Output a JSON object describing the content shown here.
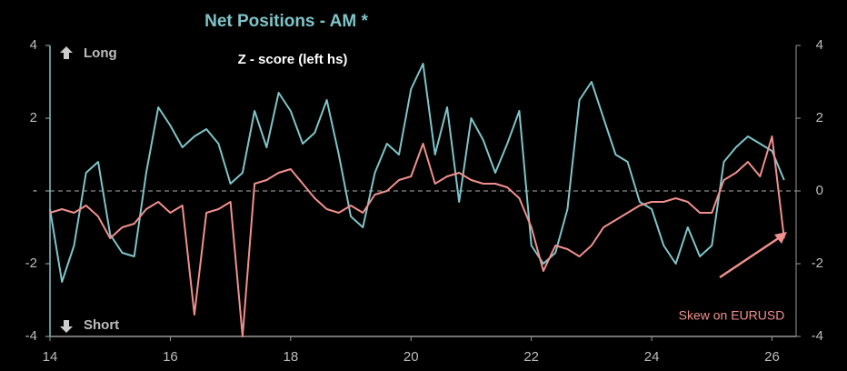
{
  "chart_data": {
    "type": "line",
    "title": "Net Positions - AM *",
    "subtitle": "Z - score (left hs)",
    "annotations": {
      "long": "Long",
      "short": "Short",
      "skew": "Skew on EURUSD"
    },
    "x": [
      14,
      14.2,
      14.4,
      14.6,
      14.8,
      15,
      15.2,
      15.4,
      15.6,
      15.8,
      16,
      16.2,
      16.4,
      16.6,
      16.8,
      17,
      17.2,
      17.4,
      17.6,
      17.8,
      18,
      18.2,
      18.4,
      18.6,
      18.8,
      19,
      19.2,
      19.4,
      19.6,
      19.8,
      20,
      20.2,
      20.4,
      20.6,
      20.8,
      21,
      21.2,
      21.4,
      21.6,
      21.8,
      22,
      22.2,
      22.4,
      22.6,
      22.8,
      23,
      23.2,
      23.4,
      23.6,
      23.8,
      24,
      24.2,
      24.4,
      24.6,
      24.8,
      25,
      25.2,
      25.4,
      25.6,
      25.8,
      26,
      26.2
    ],
    "series": [
      {
        "color": "#7fc4c8",
        "values": [
          -0.5,
          -2.5,
          -1.5,
          0.5,
          0.8,
          -1.2,
          -1.7,
          -1.8,
          0.5,
          2.3,
          1.8,
          1.2,
          1.5,
          1.7,
          1.3,
          0.2,
          0.5,
          2.2,
          1.2,
          2.7,
          2.2,
          1.3,
          1.6,
          2.5,
          1.0,
          -0.7,
          -1.0,
          0.5,
          1.3,
          1.0,
          2.8,
          3.5,
          1.0,
          2.3,
          -0.3,
          2.0,
          1.4,
          0.5,
          1.3,
          2.2,
          -1.5,
          -2.0,
          -1.7,
          -0.5,
          2.5,
          3.0,
          2.0,
          1.0,
          0.8,
          -0.3,
          -0.5,
          -1.5,
          -2.0,
          -1.0,
          -1.8,
          -1.5,
          0.8,
          1.2,
          1.5,
          1.3,
          1.1,
          0.3
        ]
      },
      {
        "color": "#f0908e",
        "axis": "y2",
        "values": [
          -0.6,
          -0.5,
          -0.6,
          -0.4,
          -0.7,
          -1.3,
          -1.0,
          -0.9,
          -0.5,
          -0.3,
          -0.6,
          -0.4,
          -3.4,
          -0.6,
          -0.5,
          -0.3,
          -4.0,
          0.2,
          0.3,
          0.5,
          0.6,
          0.2,
          -0.2,
          -0.5,
          -0.6,
          -0.4,
          -0.6,
          -0.1,
          0.0,
          0.3,
          0.4,
          1.3,
          0.2,
          0.4,
          0.5,
          0.3,
          0.2,
          0.2,
          0.1,
          -0.2,
          -1.0,
          -2.2,
          -1.5,
          -1.6,
          -1.8,
          -1.5,
          -1.0,
          -0.8,
          -0.6,
          -0.4,
          -0.3,
          -0.3,
          -0.2,
          -0.3,
          -0.6,
          -0.6,
          0.3,
          0.5,
          0.8,
          0.4,
          1.5,
          -1.3
        ]
      }
    ],
    "xlim": [
      14,
      26.4
    ],
    "xticks": [
      14,
      16,
      18,
      20,
      22,
      24,
      26
    ],
    "ylim": [
      -4,
      4
    ],
    "yticks": [
      -4,
      -2,
      {
        "value": 0,
        "label": "-"
      },
      2,
      4
    ],
    "y2lim": [
      -4,
      4
    ],
    "y2ticks": [
      -4,
      -2,
      0,
      2,
      4
    ],
    "zero_line": true
  }
}
